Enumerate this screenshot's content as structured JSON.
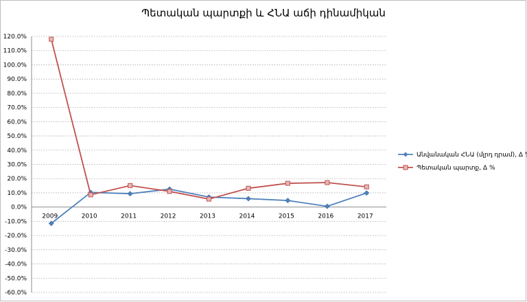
{
  "chart_data": {
    "type": "line",
    "title": "Պետական պարտքի և ՀՆԱ աճի դինամիկան",
    "categories": [
      "2009",
      "2010",
      "2011",
      "2012",
      "2013",
      "2014",
      "2015",
      "2016",
      "2017"
    ],
    "ylim": [
      -60,
      120
    ],
    "ytick_step": 10,
    "y_ticks": [
      "120.0%",
      "110.0%",
      "100.0%",
      "90.0%",
      "80.0%",
      "70.0%",
      "60.0%",
      "50.0%",
      "40.0%",
      "30.0%",
      "20.0%",
      "10.0%",
      "0.0%",
      "-10.0%",
      "-20.0%",
      "-30.0%",
      "-40.0%",
      "-50.0%",
      "-60.0%"
    ],
    "grid": true,
    "legend_position": "right",
    "series": [
      {
        "name": "Անվանական ՀՆԱ (մլրդ դրամ), Δ %",
        "color": "#4f81bd",
        "marker": "diamond",
        "values": [
          -11.5,
          10.3,
          9.4,
          12.6,
          7.0,
          5.9,
          4.6,
          0.5,
          9.9
        ]
      },
      {
        "name": "Պետական պարտք, Δ %",
        "color": "#c0504d",
        "marker": "square",
        "values": [
          118.0,
          8.6,
          15.1,
          11.0,
          5.6,
          13.2,
          16.7,
          17.2,
          14.2
        ]
      }
    ]
  }
}
